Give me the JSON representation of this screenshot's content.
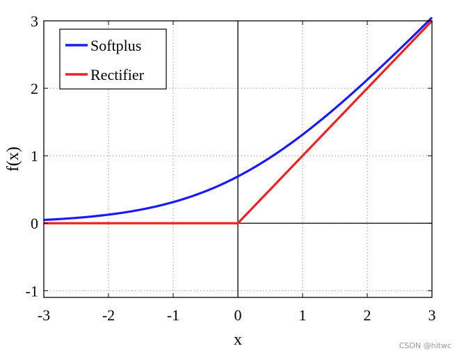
{
  "chart_data": {
    "type": "line",
    "xlabel": "x",
    "ylabel": "f(x)",
    "xlim": [
      -3,
      3
    ],
    "ylim": [
      -1.1,
      3
    ],
    "x_ticks": [
      -3,
      -2,
      -1,
      0,
      1,
      2,
      3
    ],
    "y_ticks": [
      -1,
      0,
      1,
      2,
      3
    ],
    "x_tick_labels": [
      "-3",
      "-2",
      "-1",
      "0",
      "1",
      "2",
      "3"
    ],
    "y_tick_labels": [
      "-1",
      "0",
      "1",
      "2",
      "3"
    ],
    "grid": true,
    "legend_position": "top-left",
    "series": [
      {
        "name": "Softplus",
        "color": "#1a1aff",
        "x": [
          -3,
          -2.5,
          -2,
          -1.5,
          -1,
          -0.5,
          0,
          0.5,
          1,
          1.5,
          2,
          2.5,
          3
        ],
        "y": [
          0.049,
          0.079,
          0.127,
          0.201,
          0.313,
          0.474,
          0.693,
          0.974,
          1.313,
          1.701,
          2.127,
          2.579,
          3.049
        ]
      },
      {
        "name": "Rectifier",
        "color": "#ee2222",
        "x": [
          -3,
          0,
          3
        ],
        "y": [
          0,
          0,
          3
        ]
      }
    ]
  },
  "watermark": "CSDN @hitwc"
}
